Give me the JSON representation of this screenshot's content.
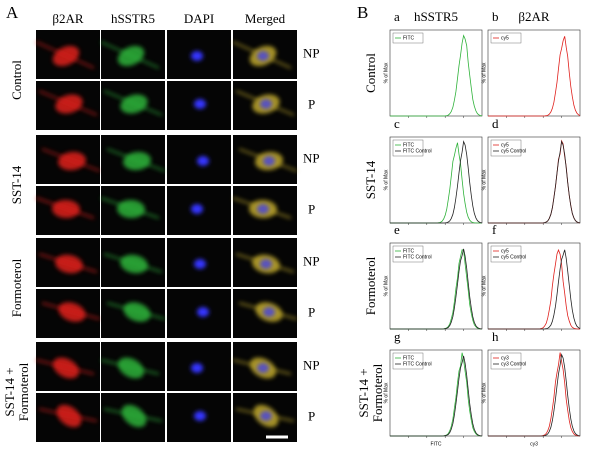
{
  "panel_a": {
    "label": "A",
    "columns": [
      "β2AR",
      "hSSTR5",
      "DAPI",
      "Merged"
    ],
    "groups": [
      {
        "label": [
          "Control"
        ],
        "rows": [
          "NP",
          "P"
        ]
      },
      {
        "label": [
          "SST-14"
        ],
        "rows": [
          "NP",
          "P"
        ]
      },
      {
        "label": [
          "Formoterol"
        ],
        "rows": [
          "NP",
          "P"
        ]
      },
      {
        "label": [
          "SST-14 +",
          "Formoterol"
        ],
        "rows": [
          "NP",
          "P"
        ]
      }
    ]
  },
  "panel_b": {
    "label": "B",
    "columns": [
      "hSSTR5",
      "β2AR"
    ],
    "row_labels": [
      [
        "Control"
      ],
      [
        "SST-14"
      ],
      [
        "Formoterol"
      ],
      [
        "SST-14 +",
        "Formoterol"
      ]
    ],
    "y_label": "% of Max",
    "plots": [
      {
        "letter": "a",
        "legend": [
          "FITC"
        ]
      },
      {
        "letter": "b",
        "legend": [
          "cy5"
        ]
      },
      {
        "letter": "c",
        "legend": [
          "FITC",
          "FITC Control"
        ]
      },
      {
        "letter": "d",
        "legend": [
          "cy5",
          "cy5 Control"
        ]
      },
      {
        "letter": "e",
        "legend": [
          "FITC",
          "FITC Control"
        ]
      },
      {
        "letter": "f",
        "legend": [
          "cy5",
          "cy5 Control"
        ]
      },
      {
        "letter": "g",
        "legend": [
          "FITC",
          "FITC Control"
        ],
        "x_label": "FITC"
      },
      {
        "letter": "h",
        "legend": [
          "cy3",
          "cy3 Control"
        ],
        "x_label": "cy3"
      }
    ]
  }
}
